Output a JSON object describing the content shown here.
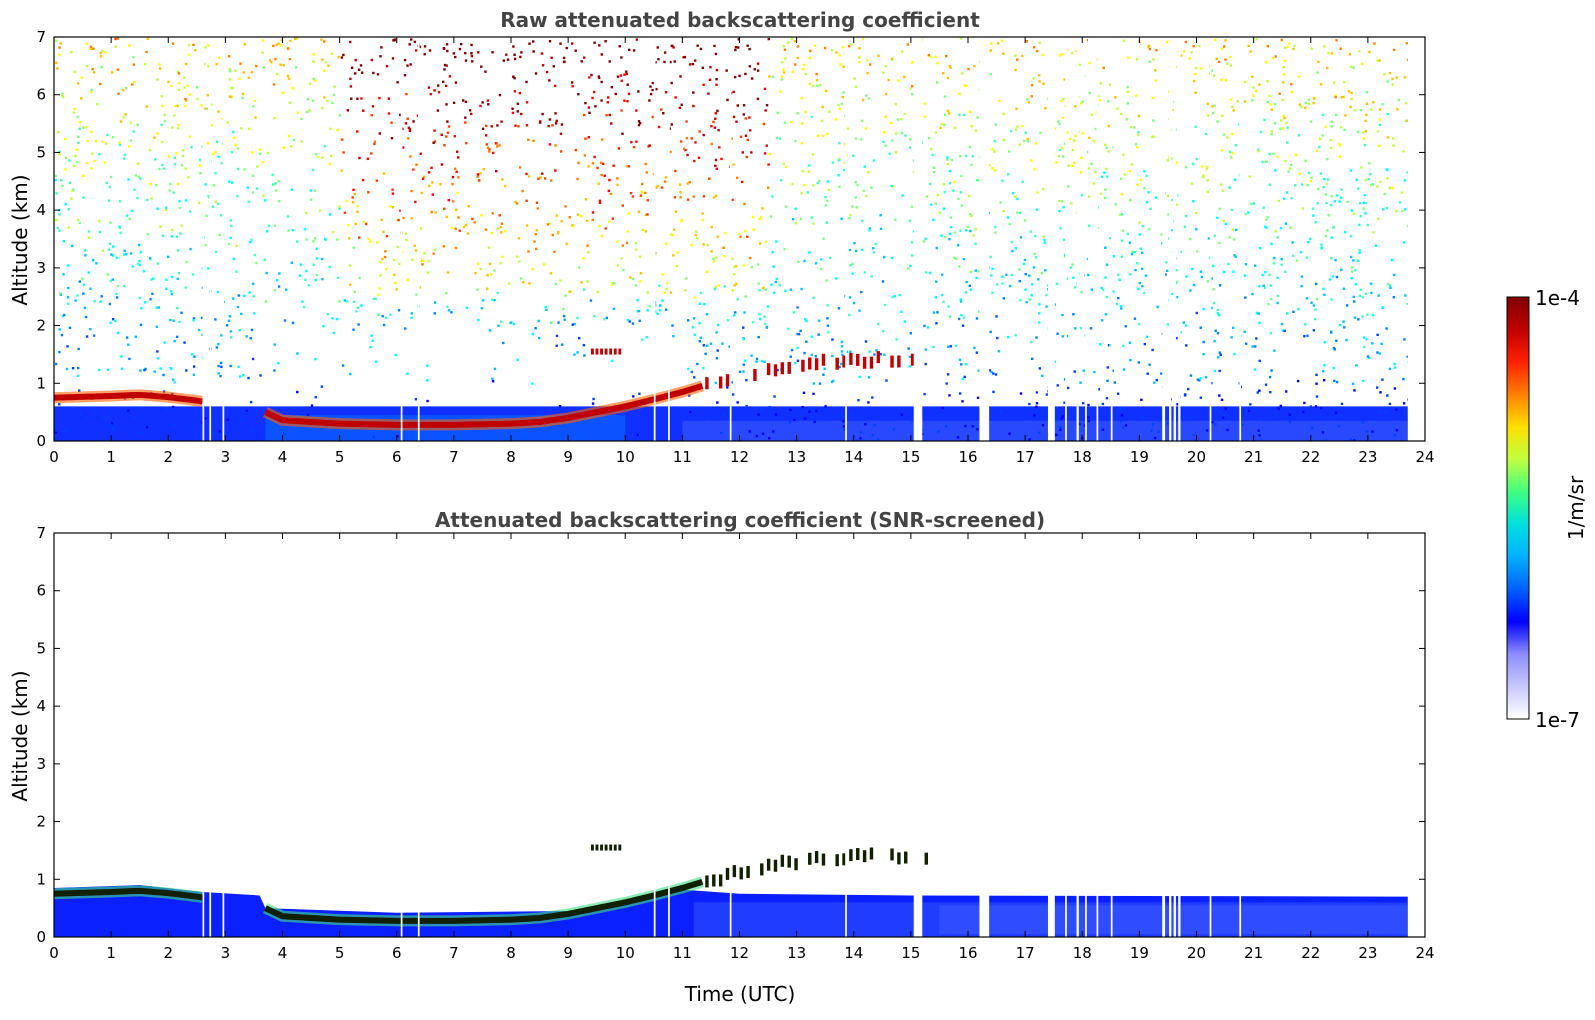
{
  "chart_data": [
    {
      "type": "heatmap",
      "title": "Raw attenuated backscattering coefficient",
      "xlabel": "",
      "ylabel": "Altitude (km)",
      "xlim": [
        0,
        24
      ],
      "ylim": [
        0,
        7
      ],
      "x_ticks": [
        0,
        1,
        2,
        3,
        4,
        5,
        6,
        7,
        8,
        9,
        10,
        11,
        12,
        13,
        14,
        15,
        16,
        17,
        18,
        19,
        20,
        21,
        22,
        23,
        24
      ],
      "y_ticks": [
        0,
        1,
        2,
        3,
        4,
        5,
        6,
        7
      ],
      "data_end_hour": 23.7,
      "noise_level": "high",
      "boundary_layer_top": [
        {
          "x": 0,
          "y": 0.75
        },
        {
          "x": 1,
          "y": 0.78
        },
        {
          "x": 1.5,
          "y": 0.8
        },
        {
          "x": 2,
          "y": 0.76
        },
        {
          "x": 2.5,
          "y": 0.7
        },
        {
          "x": 3.7,
          "y": 0.5
        },
        {
          "x": 4,
          "y": 0.36
        },
        {
          "x": 5,
          "y": 0.3
        },
        {
          "x": 6,
          "y": 0.28
        },
        {
          "x": 7,
          "y": 0.28
        },
        {
          "x": 8,
          "y": 0.3
        },
        {
          "x": 8.5,
          "y": 0.33
        },
        {
          "x": 9,
          "y": 0.4
        },
        {
          "x": 9.5,
          "y": 0.5
        },
        {
          "x": 10,
          "y": 0.6
        },
        {
          "x": 10.5,
          "y": 0.72
        },
        {
          "x": 11,
          "y": 0.85
        },
        {
          "x": 11.5,
          "y": 1.0
        },
        {
          "x": 12,
          "y": 1.12
        },
        {
          "x": 12.5,
          "y": 1.25
        },
        {
          "x": 13,
          "y": 1.32
        },
        {
          "x": 13.5,
          "y": 1.37
        },
        {
          "x": 14,
          "y": 1.38
        },
        {
          "x": 14.5,
          "y": 1.4
        },
        {
          "x": 15,
          "y": 1.4
        },
        {
          "x": 15.3,
          "y": 1.4
        }
      ],
      "elevated_layer": {
        "x": [
          9.4,
          9.95
        ],
        "y": 1.55
      },
      "data_gaps": [
        [
          2.6,
          2.63
        ],
        [
          2.72,
          2.75
        ],
        [
          2.95,
          2.98
        ],
        [
          6.07,
          6.1
        ],
        [
          6.37,
          6.4
        ],
        [
          10.5,
          10.53
        ],
        [
          10.75,
          10.78
        ],
        [
          11.83,
          11.86
        ],
        [
          13.85,
          13.88
        ],
        [
          15.05,
          15.2
        ],
        [
          16.2,
          16.37
        ],
        [
          17.4,
          17.52
        ],
        [
          17.7,
          17.73
        ],
        [
          17.9,
          17.94
        ],
        [
          18.05,
          18.08
        ],
        [
          18.25,
          18.28
        ],
        [
          18.5,
          18.53
        ],
        [
          19.4,
          19.45
        ],
        [
          19.52,
          19.56
        ],
        [
          19.6,
          19.64
        ],
        [
          19.68,
          19.72
        ],
        [
          20.23,
          20.26
        ],
        [
          20.75,
          20.78
        ]
      ]
    },
    {
      "type": "heatmap",
      "title": "Attenuated backscattering coefficient (SNR-screened)",
      "xlabel": "Time (UTC)",
      "ylabel": "Altitude (km)",
      "xlim": [
        0,
        24
      ],
      "ylim": [
        0,
        7
      ],
      "x_ticks": [
        0,
        1,
        2,
        3,
        4,
        5,
        6,
        7,
        8,
        9,
        10,
        11,
        12,
        13,
        14,
        15,
        16,
        17,
        18,
        19,
        20,
        21,
        22,
        23,
        24
      ],
      "y_ticks": [
        0,
        1,
        2,
        3,
        4,
        5,
        6,
        7
      ],
      "data_end_hour": 23.7,
      "noise_level": "none",
      "boundary_layer_top": [
        {
          "x": 0,
          "y": 0.75
        },
        {
          "x": 1,
          "y": 0.78
        },
        {
          "x": 1.5,
          "y": 0.8
        },
        {
          "x": 2,
          "y": 0.76
        },
        {
          "x": 2.5,
          "y": 0.7
        },
        {
          "x": 3.7,
          "y": 0.5
        },
        {
          "x": 4,
          "y": 0.36
        },
        {
          "x": 5,
          "y": 0.3
        },
        {
          "x": 6,
          "y": 0.28
        },
        {
          "x": 7,
          "y": 0.28
        },
        {
          "x": 8,
          "y": 0.3
        },
        {
          "x": 8.5,
          "y": 0.33
        },
        {
          "x": 9,
          "y": 0.4
        },
        {
          "x": 9.5,
          "y": 0.5
        },
        {
          "x": 10,
          "y": 0.6
        },
        {
          "x": 10.5,
          "y": 0.72
        },
        {
          "x": 11,
          "y": 0.85
        },
        {
          "x": 11.5,
          "y": 1.0
        },
        {
          "x": 12,
          "y": 1.12
        },
        {
          "x": 12.5,
          "y": 1.25
        },
        {
          "x": 13,
          "y": 1.32
        },
        {
          "x": 13.5,
          "y": 1.37
        },
        {
          "x": 14,
          "y": 1.38
        },
        {
          "x": 14.5,
          "y": 1.4
        },
        {
          "x": 15,
          "y": 1.4
        },
        {
          "x": 15.3,
          "y": 1.4
        }
      ],
      "elevated_layer": {
        "x": [
          9.4,
          9.95
        ],
        "y": 1.55
      },
      "screened_layer_top": [
        {
          "x": 0,
          "y": 0.85
        },
        {
          "x": 1.5,
          "y": 0.9
        },
        {
          "x": 2.6,
          "y": 0.78
        },
        {
          "x": 3.6,
          "y": 0.72
        },
        {
          "x": 3.7,
          "y": 0.5
        },
        {
          "x": 6,
          "y": 0.42
        },
        {
          "x": 9,
          "y": 0.45
        },
        {
          "x": 10,
          "y": 0.65
        },
        {
          "x": 11,
          "y": 0.82
        },
        {
          "x": 12,
          "y": 0.75
        },
        {
          "x": 15,
          "y": 0.72
        },
        {
          "x": 23.7,
          "y": 0.7
        }
      ],
      "data_gaps": [
        [
          2.6,
          2.63
        ],
        [
          2.72,
          2.75
        ],
        [
          2.95,
          2.98
        ],
        [
          6.07,
          6.1
        ],
        [
          6.37,
          6.4
        ],
        [
          10.5,
          10.53
        ],
        [
          10.75,
          10.78
        ],
        [
          11.83,
          11.86
        ],
        [
          13.85,
          13.88
        ],
        [
          15.05,
          15.2
        ],
        [
          16.2,
          16.37
        ],
        [
          17.4,
          17.52
        ],
        [
          17.7,
          17.73
        ],
        [
          17.9,
          17.94
        ],
        [
          18.05,
          18.08
        ],
        [
          18.25,
          18.28
        ],
        [
          18.5,
          18.53
        ],
        [
          19.4,
          19.45
        ],
        [
          19.52,
          19.56
        ],
        [
          19.6,
          19.64
        ],
        [
          19.68,
          19.72
        ],
        [
          20.23,
          20.26
        ],
        [
          20.75,
          20.78
        ]
      ]
    }
  ],
  "colorbar": {
    "label": "1/m/sr",
    "min_label": "1e-7",
    "max_label": "1e-4",
    "scale": "log",
    "colormap": "jet",
    "colors": [
      "#ffffff",
      "#c8c8ff",
      "#8c8cff",
      "#0000ff",
      "#0060ff",
      "#00b0ff",
      "#00e0e0",
      "#40ff80",
      "#c0ff40",
      "#ffe000",
      "#ff8000",
      "#ff2000",
      "#c00000",
      "#800000"
    ]
  }
}
